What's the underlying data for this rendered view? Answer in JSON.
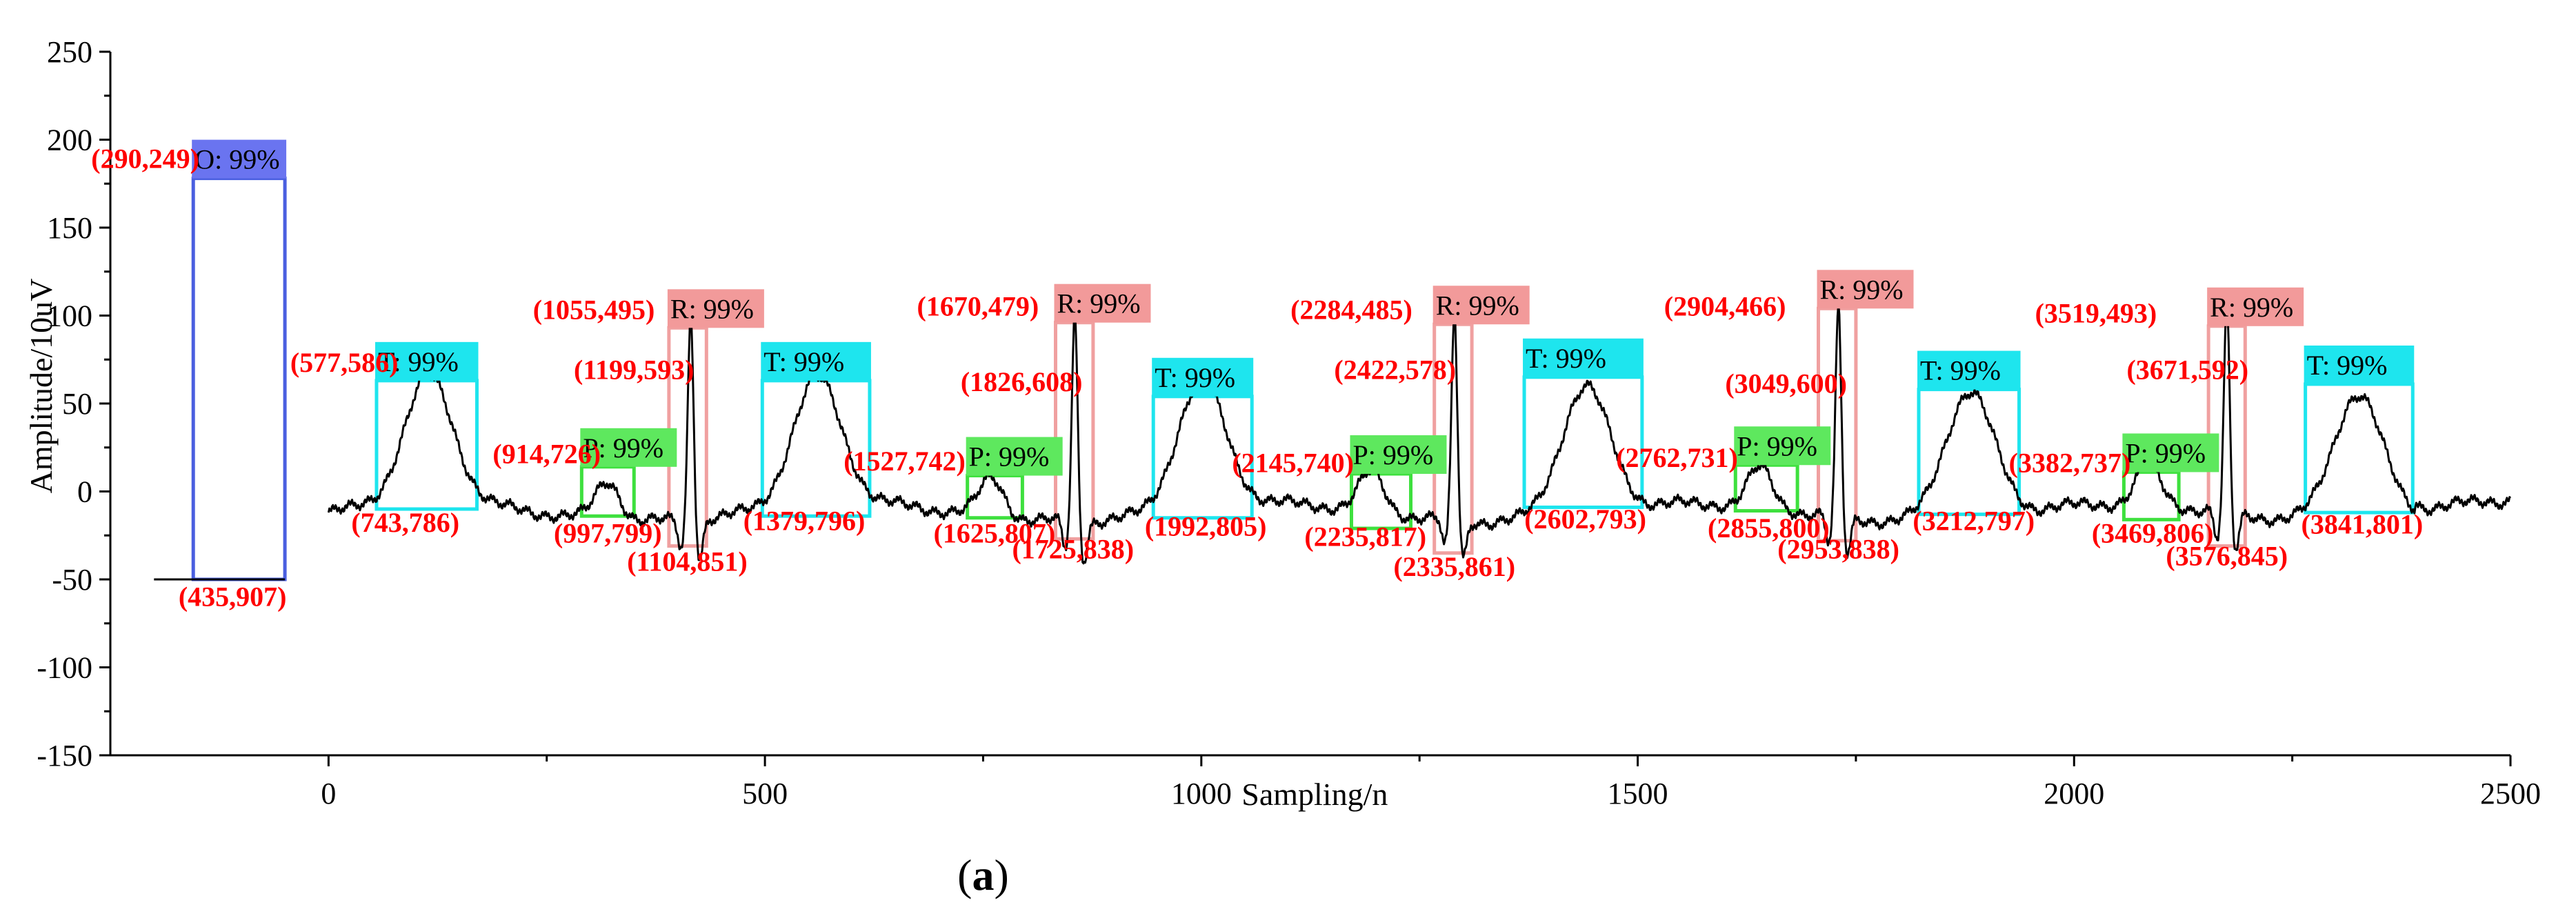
{
  "chart_data": {
    "type": "line",
    "title": "",
    "caption_open": "(",
    "caption_bold": "a",
    "caption_close": ")",
    "xlabel": "Sampling/n",
    "ylabel": "Amplitude/10uV",
    "xlim": [
      -250,
      2500
    ],
    "ylim": [
      -150,
      250
    ],
    "x_ticks": [
      0,
      500,
      1000,
      1500,
      2000,
      2500
    ],
    "y_ticks": [
      -150,
      -100,
      -50,
      0,
      50,
      100,
      150,
      200,
      250
    ],
    "colors": {
      "signal": "#000000",
      "O": "#4a5fe0",
      "R": "#f0a0a0",
      "T": "#1ee5ee",
      "P": "#3ee03e",
      "annotation": "#ff0000"
    },
    "box_fill": {
      "O": "#6a74f0",
      "R": "#f29a9a",
      "T": "#1ee5ee",
      "P": "#5ee85e"
    },
    "marker": {
      "x_start": -200,
      "x_end": -50,
      "level": -50
    },
    "beats": [
      {
        "p": 320,
        "r": 415,
        "t": 115
      },
      {
        "p": 760,
        "r": 855,
        "t": 560
      },
      {
        "p": 1195,
        "r": 1290,
        "t": 1000
      },
      {
        "p": 1640,
        "r": 1730,
        "t": 1440
      },
      {
        "p": 2085,
        "r": 2175,
        "t": 1880
      },
      {
        "t": 2325
      }
    ],
    "boxes": [
      {
        "cls": "O",
        "label": "O: 99%",
        "x1": -155,
        "x2": -50,
        "y1": -50,
        "y2": 178
      },
      {
        "cls": "T",
        "label": "T: 99%",
        "x1": 55,
        "x2": 170,
        "y1": -10,
        "y2": 63
      },
      {
        "cls": "P",
        "label": "P: 99%",
        "x1": 290,
        "x2": 350,
        "y1": -14,
        "y2": 14
      },
      {
        "cls": "R",
        "label": "R: 99%",
        "x1": 390,
        "x2": 433,
        "y1": -31,
        "y2": 93
      },
      {
        "cls": "T",
        "label": "T: 99%",
        "x1": 497,
        "x2": 620,
        "y1": -14,
        "y2": 63
      },
      {
        "cls": "P",
        "label": "P: 99%",
        "x1": 732,
        "x2": 795,
        "y1": -15,
        "y2": 9
      },
      {
        "cls": "R",
        "label": "R: 99%",
        "x1": 833,
        "x2": 876,
        "y1": -27,
        "y2": 96
      },
      {
        "cls": "T",
        "label": "T: 99%",
        "x1": 945,
        "x2": 1058,
        "y1": -15,
        "y2": 54
      },
      {
        "cls": "P",
        "label": "P: 99%",
        "x1": 1172,
        "x2": 1240,
        "y1": -21,
        "y2": 10
      },
      {
        "cls": "R",
        "label": "R: 99%",
        "x1": 1267,
        "x2": 1310,
        "y1": -35,
        "y2": 95
      },
      {
        "cls": "T",
        "label": "T: 99%",
        "x1": 1370,
        "x2": 1505,
        "y1": -9,
        "y2": 65
      },
      {
        "cls": "P",
        "label": "P: 99%",
        "x1": 1612,
        "x2": 1683,
        "y1": -11,
        "y2": 15
      },
      {
        "cls": "R",
        "label": "R: 99%",
        "x1": 1707,
        "x2": 1750,
        "y1": -28,
        "y2": 104
      },
      {
        "cls": "T",
        "label": "T: 99%",
        "x1": 1822,
        "x2": 1937,
        "y1": -13,
        "y2": 58
      },
      {
        "cls": "P",
        "label": "P: 99%",
        "x1": 2057,
        "x2": 2120,
        "y1": -16,
        "y2": 11
      },
      {
        "cls": "R",
        "label": "R: 99%",
        "x1": 2154,
        "x2": 2196,
        "y1": -31,
        "y2": 94
      },
      {
        "cls": "T",
        "label": "T: 99%",
        "x1": 2265,
        "x2": 2388,
        "y1": -12,
        "y2": 61
      }
    ],
    "annotations": [
      {
        "text": "(290,249)",
        "x": -210,
        "y": 184
      },
      {
        "text": "(435,907)",
        "x": -110,
        "y": -65
      },
      {
        "text": "(577,586)",
        "x": 18,
        "y": 68
      },
      {
        "text": "(743,786)",
        "x": 88,
        "y": -23
      },
      {
        "text": "(914,726)",
        "x": 250,
        "y": 16
      },
      {
        "text": "(997,799)",
        "x": 320,
        "y": -29
      },
      {
        "text": "(1055,495)",
        "x": 304,
        "y": 98
      },
      {
        "text": "(1199,593)",
        "x": 350,
        "y": 64
      },
      {
        "text": "(1104,851)",
        "x": 411,
        "y": -45
      },
      {
        "text": "(1379,796)",
        "x": 545,
        "y": -22
      },
      {
        "text": "(1527,742)",
        "x": 660,
        "y": 12
      },
      {
        "text": "(1625,807)",
        "x": 763,
        "y": -29
      },
      {
        "text": "(1670,479)",
        "x": 744,
        "y": 100
      },
      {
        "text": "(1826,608)",
        "x": 794,
        "y": 57
      },
      {
        "text": "(1725,838)",
        "x": 853,
        "y": -38
      },
      {
        "text": "(1992,805)",
        "x": 1005,
        "y": -25
      },
      {
        "text": "(2145,740)",
        "x": 1105,
        "y": 11
      },
      {
        "text": "(2235,817)",
        "x": 1188,
        "y": -31
      },
      {
        "text": "(2284,485)",
        "x": 1172,
        "y": 98
      },
      {
        "text": "(2422,578)",
        "x": 1222,
        "y": 64
      },
      {
        "text": "(2335,861)",
        "x": 1290,
        "y": -48
      },
      {
        "text": "(2602,793)",
        "x": 1440,
        "y": -21
      },
      {
        "text": "(2762,731)",
        "x": 1545,
        "y": 14
      },
      {
        "text": "(2855,800)",
        "x": 1650,
        "y": -26
      },
      {
        "text": "(2904,466)",
        "x": 1600,
        "y": 100
      },
      {
        "text": "(3049,600)",
        "x": 1670,
        "y": 56
      },
      {
        "text": "(2953,838)",
        "x": 1730,
        "y": -38
      },
      {
        "text": "(3212,797)",
        "x": 1885,
        "y": -22
      },
      {
        "text": "(3382,737)",
        "x": 1995,
        "y": 11
      },
      {
        "text": "(3469,806)",
        "x": 2090,
        "y": -29
      },
      {
        "text": "(3519,493)",
        "x": 2025,
        "y": 96
      },
      {
        "text": "(3671,592)",
        "x": 2130,
        "y": 64
      },
      {
        "text": "(3576,845)",
        "x": 2175,
        "y": -42
      },
      {
        "text": "(3841,801)",
        "x": 2330,
        "y": -24
      }
    ]
  }
}
